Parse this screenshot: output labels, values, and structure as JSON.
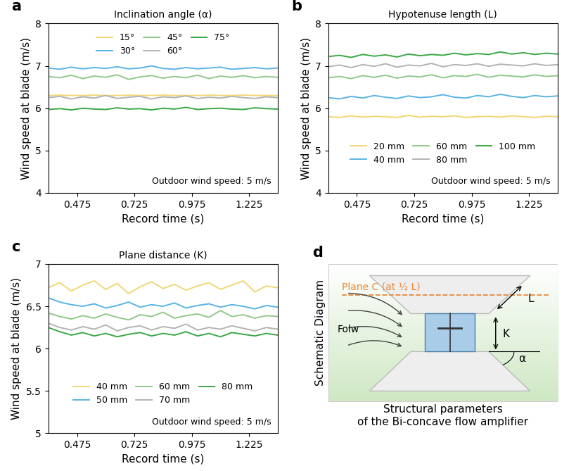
{
  "chart_data": [
    {
      "type": "line",
      "panel": "a",
      "title": "Inclination angle (α)",
      "x_label": "Record time (s)",
      "y_label": "Wind speed at blade (m/s)",
      "annotations": [
        "Outdoor wind speed: 5 m/s"
      ],
      "x": [
        0.35,
        0.4,
        0.45,
        0.5,
        0.55,
        0.6,
        0.65,
        0.7,
        0.75,
        0.8,
        0.85,
        0.9,
        0.95,
        1.0,
        1.05,
        1.1,
        1.15,
        1.2,
        1.25,
        1.3,
        1.35
      ],
      "xlim": [
        0.35,
        1.35
      ],
      "xticks": [
        0.475,
        0.725,
        0.975,
        1.225
      ],
      "ylim": [
        4,
        8
      ],
      "yticks": [
        4,
        5,
        6,
        7,
        8
      ],
      "legend": "upper center",
      "series": [
        {
          "name": "15°",
          "color": "#f2d675",
          "values": [
            6.3,
            6.31,
            6.3,
            6.3,
            6.31,
            6.3,
            6.3,
            6.31,
            6.3,
            6.3,
            6.31,
            6.3,
            6.3,
            6.3,
            6.31,
            6.3,
            6.3,
            6.31,
            6.3,
            6.3,
            6.3
          ]
        },
        {
          "name": "30°",
          "color": "#5ab4e5",
          "values": [
            6.95,
            6.92,
            6.97,
            6.93,
            6.96,
            6.94,
            6.98,
            6.93,
            6.95,
            7.0,
            6.94,
            6.92,
            6.96,
            6.93,
            6.95,
            6.97,
            6.92,
            6.94,
            6.96,
            6.93,
            6.95
          ]
        },
        {
          "name": "45°",
          "color": "#8fc98a",
          "values": [
            6.75,
            6.72,
            6.78,
            6.7,
            6.76,
            6.73,
            6.79,
            6.68,
            6.74,
            6.77,
            6.71,
            6.75,
            6.72,
            6.78,
            6.7,
            6.76,
            6.73,
            6.77,
            6.72,
            6.75,
            6.73
          ]
        },
        {
          "name": "60°",
          "color": "#b3b3b3",
          "values": [
            6.25,
            6.28,
            6.22,
            6.27,
            6.24,
            6.3,
            6.23,
            6.26,
            6.28,
            6.22,
            6.27,
            6.25,
            6.29,
            6.23,
            6.26,
            6.24,
            6.28,
            6.25,
            6.23,
            6.27,
            6.25
          ]
        },
        {
          "name": "75°",
          "color": "#3aa845",
          "values": [
            5.97,
            5.99,
            5.96,
            6.0,
            5.98,
            5.97,
            6.01,
            5.98,
            5.99,
            5.96,
            6.0,
            5.98,
            6.02,
            5.97,
            5.99,
            6.0,
            5.98,
            5.97,
            6.01,
            5.99,
            5.98
          ]
        }
      ]
    },
    {
      "type": "line",
      "panel": "b",
      "title": "Hypotenuse length (L)",
      "x_label": "Record time (s)",
      "y_label": "Wind speed at blade (m/s)",
      "annotations": [
        "Outdoor wind speed: 5 m/s"
      ],
      "x": [
        0.35,
        0.4,
        0.45,
        0.5,
        0.55,
        0.6,
        0.65,
        0.7,
        0.75,
        0.8,
        0.85,
        0.9,
        0.95,
        1.0,
        1.05,
        1.1,
        1.15,
        1.2,
        1.25,
        1.3,
        1.35
      ],
      "xlim": [
        0.35,
        1.35
      ],
      "xticks": [
        0.475,
        0.725,
        0.975,
        1.225
      ],
      "ylim": [
        4,
        8
      ],
      "yticks": [
        4,
        5,
        6,
        7,
        8
      ],
      "legend": "lower center",
      "series": [
        {
          "name": "20 mm",
          "color": "#f2d675",
          "values": [
            5.8,
            5.78,
            5.82,
            5.79,
            5.81,
            5.8,
            5.78,
            5.83,
            5.79,
            5.81,
            5.8,
            5.82,
            5.78,
            5.8,
            5.81,
            5.79,
            5.82,
            5.8,
            5.78,
            5.81,
            5.8
          ]
        },
        {
          "name": "40 mm",
          "color": "#5ab4e5",
          "values": [
            6.25,
            6.22,
            6.28,
            6.24,
            6.3,
            6.26,
            6.23,
            6.29,
            6.25,
            6.27,
            6.32,
            6.26,
            6.24,
            6.3,
            6.27,
            6.33,
            6.28,
            6.25,
            6.3,
            6.27,
            6.29
          ]
        },
        {
          "name": "60 mm",
          "color": "#8fc98a",
          "values": [
            6.72,
            6.75,
            6.7,
            6.77,
            6.73,
            6.78,
            6.71,
            6.76,
            6.74,
            6.79,
            6.72,
            6.77,
            6.75,
            6.8,
            6.73,
            6.78,
            6.76,
            6.74,
            6.79,
            6.75,
            6.77
          ]
        },
        {
          "name": "80 mm",
          "color": "#b3b3b3",
          "values": [
            6.98,
            7.02,
            6.96,
            7.03,
            6.99,
            7.05,
            6.97,
            7.02,
            7.0,
            7.06,
            6.98,
            7.03,
            7.01,
            7.05,
            6.99,
            7.04,
            7.02,
            7.0,
            7.05,
            7.01,
            7.03
          ]
        },
        {
          "name": "100 mm",
          "color": "#3aa845",
          "values": [
            7.22,
            7.25,
            7.2,
            7.27,
            7.23,
            7.26,
            7.21,
            7.28,
            7.24,
            7.27,
            7.25,
            7.3,
            7.26,
            7.29,
            7.27,
            7.33,
            7.28,
            7.31,
            7.27,
            7.3,
            7.28
          ]
        }
      ]
    },
    {
      "type": "line",
      "panel": "c",
      "title": "Plane distance (K)",
      "x_label": "Record time (s)",
      "y_label": "Wind speed at blade (m/s)",
      "annotations": [
        "Outdoor wind speed: 5 m/s"
      ],
      "x": [
        0.35,
        0.4,
        0.45,
        0.5,
        0.55,
        0.6,
        0.65,
        0.7,
        0.75,
        0.8,
        0.85,
        0.9,
        0.95,
        1.0,
        1.05,
        1.1,
        1.15,
        1.2,
        1.25,
        1.3,
        1.35
      ],
      "xlim": [
        0.35,
        1.35
      ],
      "xticks": [
        0.475,
        0.725,
        0.975,
        1.225
      ],
      "ylim": [
        5,
        7
      ],
      "yticks": [
        5,
        5.5,
        6,
        6.5,
        7
      ],
      "legend": "lower center",
      "series": [
        {
          "name": "40 mm",
          "color": "#f2d675",
          "values": [
            6.72,
            6.78,
            6.68,
            6.75,
            6.8,
            6.7,
            6.77,
            6.65,
            6.73,
            6.79,
            6.71,
            6.76,
            6.69,
            6.74,
            6.78,
            6.7,
            6.75,
            6.8,
            6.67,
            6.74,
            6.72
          ]
        },
        {
          "name": "50 mm",
          "color": "#5ab4e5",
          "values": [
            6.6,
            6.55,
            6.52,
            6.5,
            6.53,
            6.48,
            6.51,
            6.55,
            6.49,
            6.52,
            6.5,
            6.54,
            6.48,
            6.51,
            6.53,
            6.49,
            6.52,
            6.5,
            6.47,
            6.51,
            6.49
          ]
        },
        {
          "name": "60 mm",
          "color": "#8fc98a",
          "values": [
            6.42,
            6.38,
            6.35,
            6.39,
            6.36,
            6.41,
            6.37,
            6.34,
            6.4,
            6.38,
            6.43,
            6.36,
            6.39,
            6.41,
            6.37,
            6.45,
            6.38,
            6.4,
            6.36,
            6.39,
            6.38
          ]
        },
        {
          "name": "70 mm",
          "color": "#b3b3b3",
          "values": [
            6.3,
            6.25,
            6.22,
            6.26,
            6.23,
            6.28,
            6.21,
            6.25,
            6.27,
            6.22,
            6.26,
            6.24,
            6.29,
            6.22,
            6.25,
            6.23,
            6.27,
            6.24,
            6.21,
            6.25,
            6.23
          ]
        },
        {
          "name": "80 mm",
          "color": "#3aa845",
          "values": [
            6.25,
            6.2,
            6.16,
            6.19,
            6.15,
            6.18,
            6.14,
            6.17,
            6.19,
            6.15,
            6.18,
            6.16,
            6.2,
            6.15,
            6.18,
            6.14,
            6.19,
            6.17,
            6.15,
            6.18,
            6.16
          ]
        }
      ]
    }
  ],
  "diagram": {
    "panel": "d",
    "side_label": "Schematic Diagram",
    "plane_label": "Plane C (at ½ L)",
    "length_label": "L",
    "distance_label": "K",
    "angle_label": "α",
    "flow_label": "Folw",
    "caption": "Structural parameters\nof the Bi-concave flow amplifier"
  }
}
